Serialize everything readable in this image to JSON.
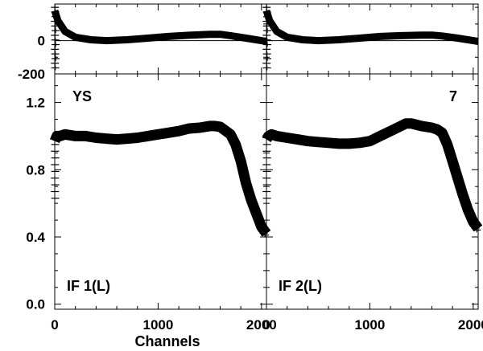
{
  "chart_data": {
    "type": "line",
    "xlabel": "Channels",
    "x_ticks": [
      "0",
      "1000",
      "2000"
    ],
    "xlim": [
      0,
      2048
    ],
    "top_row": {
      "ylim": [
        -200,
        220
      ],
      "y_ticks": [
        "0",
        "-200"
      ]
    },
    "bottom_row": {
      "ylim": [
        -0.03,
        1.37
      ],
      "y_ticks": [
        "1.2",
        "0.8",
        "0.4",
        "0.0"
      ]
    },
    "corner_labels": {
      "left": "YS",
      "right": "7"
    },
    "panels": [
      {
        "label": "IF 1(L)",
        "top": {
          "x": [
            0,
            30,
            100,
            200,
            350,
            500,
            700,
            900,
            1100,
            1300,
            1500,
            1600,
            1700,
            1850,
            2000,
            2048
          ],
          "y": [
            180,
            120,
            55,
            20,
            5,
            0,
            5,
            15,
            25,
            32,
            38,
            38,
            30,
            15,
            0,
            -5
          ]
        },
        "bottom": {
          "x": [
            0,
            20,
            50,
            100,
            200,
            300,
            400,
            500,
            600,
            700,
            800,
            900,
            1000,
            1100,
            1200,
            1300,
            1400,
            1500,
            1550,
            1600,
            1700,
            1750,
            1800,
            1850,
            1900,
            1950,
            2000,
            2048
          ],
          "y": [
            0.97,
            1.0,
            1.0,
            1.01,
            1.0,
            1.0,
            0.99,
            0.985,
            0.98,
            0.985,
            0.99,
            1.0,
            1.01,
            1.02,
            1.03,
            1.045,
            1.05,
            1.06,
            1.06,
            1.055,
            1.01,
            0.95,
            0.85,
            0.72,
            0.62,
            0.54,
            0.46,
            0.42
          ]
        }
      },
      {
        "label": "IF 2(L)",
        "top": {
          "x": [
            0,
            30,
            100,
            200,
            350,
            500,
            700,
            900,
            1100,
            1300,
            1500,
            1600,
            1700,
            1850,
            2000,
            2048
          ],
          "y": [
            180,
            120,
            55,
            20,
            5,
            0,
            5,
            15,
            25,
            30,
            33,
            33,
            28,
            15,
            0,
            -5
          ]
        },
        "bottom": {
          "x": [
            0,
            20,
            50,
            100,
            200,
            300,
            400,
            500,
            600,
            700,
            800,
            900,
            1000,
            1100,
            1200,
            1300,
            1350,
            1400,
            1500,
            1600,
            1650,
            1700,
            1750,
            1800,
            1850,
            1900,
            1950,
            2000,
            2048
          ],
          "y": [
            0.98,
            1.0,
            1.01,
            1.0,
            0.99,
            0.98,
            0.97,
            0.965,
            0.96,
            0.955,
            0.955,
            0.96,
            0.97,
            1.0,
            1.03,
            1.06,
            1.075,
            1.075,
            1.06,
            1.05,
            1.04,
            1.02,
            0.95,
            0.85,
            0.75,
            0.65,
            0.56,
            0.49,
            0.45
          ]
        }
      }
    ]
  }
}
